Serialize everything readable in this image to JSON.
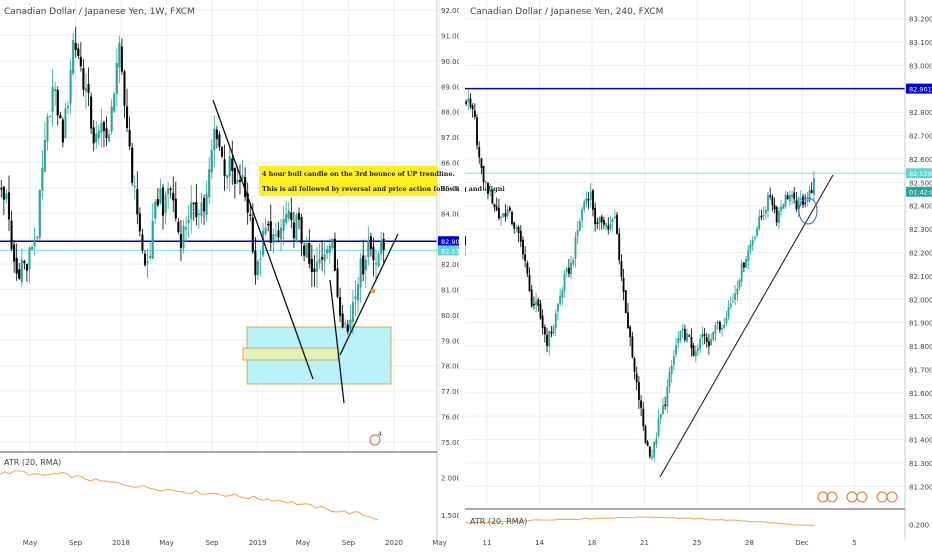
{
  "colors": {
    "up": "#26a69a",
    "down": "#000000",
    "blue_line": "#0000cc",
    "cyan_line": "#7fe0e0",
    "atr": "#f5a04a",
    "grid": "#eeeeee",
    "axis_text": "#444444",
    "note_bg": "#ffee22"
  },
  "chart_data": [
    {
      "type": "candlestick",
      "title": "Canadian Dollar / Japanese Yen, 1W, FXCM",
      "y_ticks": [
        "92.000",
        "91.000",
        "90.000",
        "89.000",
        "88.000",
        "87.000",
        "86.000",
        "85.000",
        "84.000",
        "83.000",
        "82.000",
        "81.000",
        "80.000",
        "79.000",
        "78.000",
        "77.000",
        "76.000",
        "75.000"
      ],
      "x_ticks": [
        "May",
        "Sep",
        "2018",
        "May",
        "Sep",
        "2019",
        "May",
        "Sep",
        "2020",
        "May"
      ],
      "ylim": [
        74.6,
        92.4
      ],
      "price_labels": [
        {
          "text": "82.901",
          "value": 82.901
        },
        {
          "text": "82.539",
          "value": 82.539
        }
      ],
      "horizontal_lines": [
        {
          "value": 82.901,
          "style": "blue"
        },
        {
          "value": 82.539,
          "style": "cyan"
        }
      ],
      "price_path": [
        [
          0,
          85.0
        ],
        [
          5,
          84.5
        ],
        [
          10,
          82.6
        ],
        [
          15,
          81.6
        ],
        [
          20,
          82.1
        ],
        [
          25,
          81.8
        ],
        [
          30,
          82.8
        ],
        [
          35,
          83.2
        ],
        [
          40,
          85.5
        ],
        [
          45,
          87.4
        ],
        [
          50,
          88.9
        ],
        [
          55,
          88.2
        ],
        [
          60,
          87.0
        ],
        [
          65,
          88.3
        ],
        [
          70,
          90.8
        ],
        [
          75,
          90.4
        ],
        [
          80,
          89.3
        ],
        [
          85,
          88.5
        ],
        [
          90,
          87.0
        ],
        [
          95,
          86.8
        ],
        [
          100,
          87.8
        ],
        [
          105,
          86.5
        ],
        [
          110,
          88.8
        ],
        [
          115,
          90.6
        ],
        [
          120,
          88.5
        ],
        [
          125,
          87.0
        ],
        [
          130,
          84.9
        ],
        [
          135,
          83.8
        ],
        [
          140,
          81.8
        ],
        [
          145,
          82.2
        ],
        [
          150,
          83.8
        ],
        [
          155,
          85.0
        ],
        [
          160,
          84.0
        ],
        [
          165,
          85.3
        ],
        [
          170,
          84.1
        ],
        [
          175,
          83.0
        ],
        [
          180,
          83.4
        ],
        [
          185,
          84.2
        ],
        [
          190,
          83.9
        ],
        [
          195,
          84.5
        ],
        [
          200,
          84.1
        ],
        [
          205,
          85.9
        ],
        [
          210,
          87.6
        ],
        [
          215,
          86.4
        ],
        [
          220,
          85.6
        ],
        [
          225,
          85.9
        ],
        [
          230,
          84.8
        ],
        [
          235,
          85.5
        ],
        [
          240,
          84.5
        ],
        [
          245,
          83.7
        ],
        [
          250,
          81.3
        ],
        [
          255,
          82.7
        ],
        [
          260,
          83.4
        ],
        [
          265,
          83.2
        ],
        [
          270,
          82.7
        ],
        [
          275,
          83.5
        ],
        [
          280,
          83.9
        ],
        [
          285,
          83.3
        ],
        [
          290,
          83.7
        ],
        [
          295,
          82.9
        ],
        [
          300,
          82.3
        ],
        [
          305,
          81.4
        ],
        [
          310,
          81.9
        ],
        [
          315,
          82.4
        ],
        [
          320,
          83.0
        ],
        [
          325,
          82.6
        ],
        [
          330,
          80.8
        ],
        [
          335,
          79.9
        ],
        [
          340,
          79.3
        ],
        [
          345,
          80.7
        ],
        [
          350,
          81.6
        ],
        [
          355,
          82.0
        ],
        [
          360,
          82.9
        ],
        [
          365,
          82.3
        ],
        [
          370,
          82.5
        ],
        [
          375,
          82.6
        ]
      ],
      "annotation_note": [
        "4 hour bull candle on the 3rd bounce of UP trendline.",
        "This is all followed by reversal and price action following and aligni"
      ],
      "indicator": {
        "name": "ATR (20, RMA)",
        "y_ticks": [
          "2.000",
          "1.500"
        ],
        "ylim": [
          1.3,
          2.3
        ],
        "values": [
          2.05,
          2.08,
          2.02,
          2.05,
          2.0,
          1.95,
          1.92,
          1.88,
          1.85,
          1.82,
          1.8,
          1.78,
          1.75,
          1.72,
          1.7,
          1.65,
          1.6,
          1.55,
          1.52,
          1.45
        ]
      },
      "grid": true
    },
    {
      "type": "candlestick",
      "title": "Canadian Dollar / Japanese Yen, 240, FXCM",
      "y_ticks": [
        "83.200",
        "83.100",
        "83.000",
        "82.900",
        "82.800",
        "82.700",
        "82.600",
        "82.500",
        "82.400",
        "82.300",
        "82.200",
        "82.100",
        "82.000",
        "81.900",
        "81.800",
        "81.700",
        "81.600",
        "81.500",
        "81.400",
        "81.300",
        "81.200"
      ],
      "x_ticks": [
        "11",
        "14",
        "18",
        "21",
        "25",
        "28",
        "Dec",
        "5"
      ],
      "ylim": [
        81.12,
        83.28
      ],
      "price_labels": [
        {
          "text": "82.901",
          "value": 82.901
        },
        {
          "text": "82.539",
          "value": 82.539
        },
        {
          "text": "01:42:04",
          "value": 82.46
        }
      ],
      "horizontal_lines": [
        {
          "value": 82.901,
          "style": "blue"
        },
        {
          "value": 82.539,
          "style": "cyan"
        }
      ],
      "price_path": [
        [
          0,
          82.85
        ],
        [
          8,
          82.78
        ],
        [
          14,
          82.55
        ],
        [
          20,
          82.48
        ],
        [
          26,
          82.42
        ],
        [
          32,
          82.35
        ],
        [
          40,
          82.38
        ],
        [
          48,
          82.3
        ],
        [
          56,
          82.2
        ],
        [
          62,
          82.0
        ],
        [
          70,
          81.95
        ],
        [
          78,
          81.82
        ],
        [
          84,
          81.88
        ],
        [
          90,
          82.0
        ],
        [
          96,
          82.1
        ],
        [
          102,
          82.15
        ],
        [
          108,
          82.3
        ],
        [
          114,
          82.42
        ],
        [
          120,
          82.46
        ],
        [
          126,
          82.3
        ],
        [
          132,
          82.35
        ],
        [
          138,
          82.3
        ],
        [
          144,
          82.35
        ],
        [
          150,
          82.1
        ],
        [
          156,
          81.9
        ],
        [
          162,
          81.7
        ],
        [
          168,
          81.55
        ],
        [
          174,
          81.38
        ],
        [
          180,
          81.33
        ],
        [
          186,
          81.47
        ],
        [
          192,
          81.56
        ],
        [
          198,
          81.7
        ],
        [
          204,
          81.82
        ],
        [
          210,
          81.86
        ],
        [
          216,
          81.82
        ],
        [
          222,
          81.75
        ],
        [
          228,
          81.85
        ],
        [
          234,
          81.8
        ],
        [
          240,
          81.9
        ],
        [
          246,
          81.87
        ],
        [
          252,
          81.95
        ],
        [
          258,
          82.0
        ],
        [
          264,
          82.1
        ],
        [
          270,
          82.18
        ],
        [
          276,
          82.25
        ],
        [
          282,
          82.32
        ],
        [
          288,
          82.38
        ],
        [
          294,
          82.45
        ],
        [
          300,
          82.35
        ],
        [
          306,
          82.42
        ],
        [
          312,
          82.45
        ],
        [
          318,
          82.4
        ],
        [
          324,
          82.42
        ],
        [
          330,
          82.43
        ],
        [
          336,
          82.5
        ]
      ],
      "indicator": {
        "name": "ATR (20, RMA)",
        "y_ticks": [
          "0.200"
        ],
        "ylim": [
          0.16,
          0.27
        ],
        "values": [
          0.21,
          0.212,
          0.215,
          0.22,
          0.225,
          0.228,
          0.23,
          0.233,
          0.235,
          0.238,
          0.24,
          0.243,
          0.24,
          0.236,
          0.232,
          0.228,
          0.224,
          0.22,
          0.214,
          0.205,
          0.198,
          0.195
        ]
      },
      "grid": true
    }
  ],
  "icons": {
    "event_markers": "earnings-event-icon",
    "marker_number": "4"
  }
}
